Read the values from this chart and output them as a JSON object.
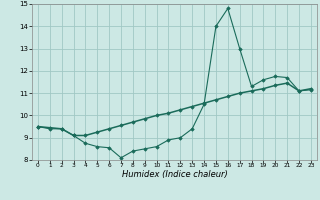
{
  "title": "",
  "xlabel": "Humidex (Indice chaleur)",
  "bg_color": "#cce8e4",
  "grid_color": "#a0c8c4",
  "line_color": "#1a6b5a",
  "x_values": [
    0,
    1,
    2,
    3,
    4,
    5,
    6,
    7,
    8,
    9,
    10,
    11,
    12,
    13,
    14,
    15,
    16,
    17,
    18,
    19,
    20,
    21,
    22,
    23
  ],
  "y_curve1": [
    9.5,
    9.4,
    9.4,
    9.1,
    8.75,
    8.6,
    8.55,
    8.1,
    8.4,
    8.5,
    8.6,
    8.9,
    9.0,
    9.4,
    10.5,
    14.0,
    14.8,
    13.0,
    11.3,
    11.6,
    11.75,
    11.7,
    11.1,
    11.15
  ],
  "y_curve2": [
    9.5,
    9.45,
    9.4,
    9.1,
    9.1,
    9.25,
    9.4,
    9.55,
    9.7,
    9.85,
    10.0,
    10.1,
    10.25,
    10.4,
    10.55,
    10.7,
    10.85,
    11.0,
    11.1,
    11.2,
    11.35,
    11.45,
    11.1,
    11.2
  ],
  "ylim": [
    8,
    15
  ],
  "xlim": [
    -0.5,
    23.5
  ],
  "yticks": [
    8,
    9,
    10,
    11,
    12,
    13,
    14,
    15
  ],
  "xticks": [
    0,
    1,
    2,
    3,
    4,
    5,
    6,
    7,
    8,
    9,
    10,
    11,
    12,
    13,
    14,
    15,
    16,
    17,
    18,
    19,
    20,
    21,
    22,
    23
  ]
}
